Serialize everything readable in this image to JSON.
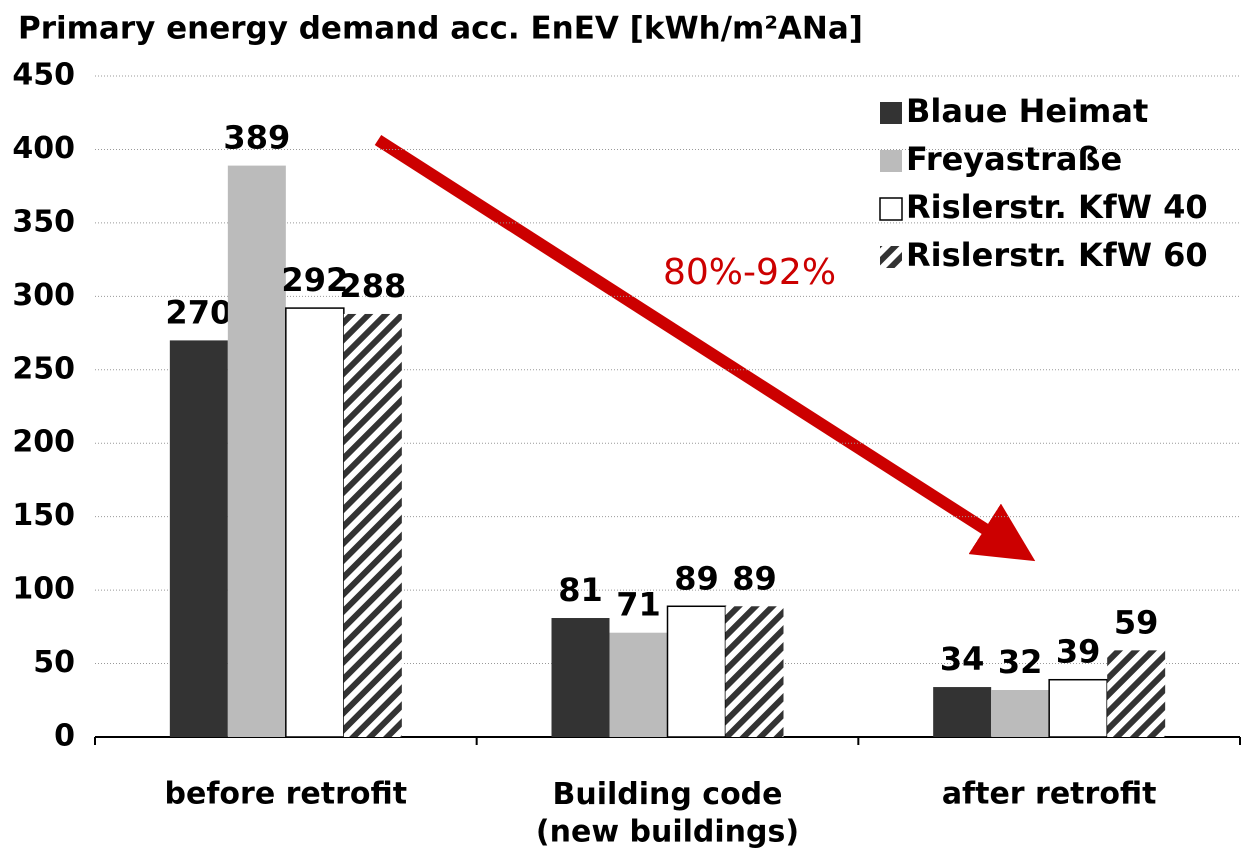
{
  "chart_data": {
    "type": "bar",
    "title": "Primary energy demand acc. EnEV [kWh/m²ANa]",
    "categories": [
      "before retrofit",
      "Building code\n(new buildings)",
      "after retrofit"
    ],
    "series": [
      {
        "name": "Blaue Heimat",
        "color": "#333333",
        "values": [
          270,
          81,
          34
        ]
      },
      {
        "name": "Freyastraße",
        "color": "#bbbbbb",
        "values": [
          389,
          71,
          32
        ]
      },
      {
        "name": "Rislerstr. KfW 40",
        "color": "#ffffff",
        "values": [
          292,
          89,
          39
        ]
      },
      {
        "name": "Rislerstr. KfW 60",
        "color": "hatch",
        "values": [
          288,
          89,
          59
        ]
      }
    ],
    "annotation": "80%-92%",
    "ylim": [
      0,
      450
    ],
    "yticks": [
      0,
      50,
      100,
      150,
      200,
      250,
      300,
      350,
      400,
      450
    ],
    "grid": true,
    "legend": "upper right"
  }
}
